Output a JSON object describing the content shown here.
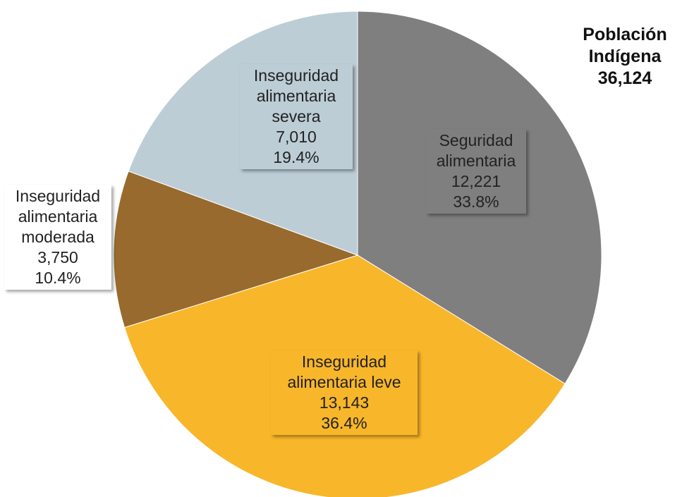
{
  "chart_data": {
    "type": "pie",
    "title_lines": [
      "Población",
      "Indígena",
      "36,124"
    ],
    "slices": [
      {
        "name_lines": [
          "Seguridad",
          "alimentaria"
        ],
        "value_text": "12,221",
        "value": 12221,
        "pct_text": "33.8%",
        "color": "#7f7f7f"
      },
      {
        "name_lines": [
          "Inseguridad",
          "alimentaria leve"
        ],
        "value_text": "13,143",
        "value": 13143,
        "pct_text": "36.4%",
        "color": "#f8b62a"
      },
      {
        "name_lines": [
          "Inseguridad",
          "alimentaria",
          "moderada"
        ],
        "value_text": "3,750",
        "value": 3750,
        "pct_text": "10.4%",
        "color": "#986a2d"
      },
      {
        "name_lines": [
          "Inseguridad",
          "alimentaria",
          "severa"
        ],
        "value_text": "7,010",
        "value": 7010,
        "pct_text": "19.4%",
        "color": "#bccdd6"
      }
    ]
  }
}
